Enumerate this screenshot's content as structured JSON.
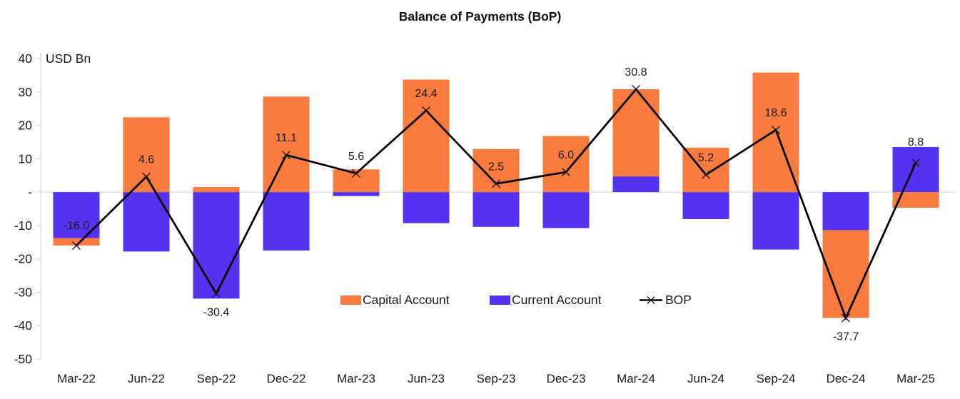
{
  "chart_data": {
    "type": "bar",
    "stacked": true,
    "line_overlay": true,
    "title": "Balance of Payments (BoP)",
    "unit_label": "USD Bn",
    "categories": [
      "Mar-22",
      "Jun-22",
      "Sep-22",
      "Dec-22",
      "Mar-23",
      "Jun-23",
      "Sep-23",
      "Dec-23",
      "Mar-24",
      "Jun-24",
      "Sep-24",
      "Dec-24",
      "Mar-25"
    ],
    "series": [
      {
        "name": "Capital Account",
        "color": "#FA7B3E",
        "values": [
          -2.2,
          22.4,
          1.5,
          28.6,
          6.8,
          33.7,
          12.9,
          16.8,
          26.1,
          13.3,
          35.8,
          -26.3,
          -4.7
        ]
      },
      {
        "name": "Current Account",
        "color": "#5632F0",
        "values": [
          -13.8,
          -17.8,
          -31.9,
          -17.5,
          -1.2,
          -9.3,
          -10.4,
          -10.8,
          4.7,
          -8.1,
          -17.2,
          -11.4,
          13.5
        ]
      }
    ],
    "stack_order": [
      "Current Account",
      "Capital Account"
    ],
    "line_series": {
      "name": "BOP",
      "color": "#000000",
      "marker": "x",
      "values": [
        -16.0,
        4.6,
        -30.4,
        11.1,
        5.6,
        24.4,
        2.5,
        6.0,
        30.8,
        5.2,
        18.6,
        -37.7,
        8.8
      ],
      "labels": [
        "-16.0",
        "4.6",
        "-30.4",
        "11.1",
        "5.6",
        "24.4",
        "2.5",
        "6.0",
        "30.8",
        "5.2",
        "18.6",
        "-37.7",
        "8.8"
      ],
      "label_dy": [
        -29,
        -25,
        25,
        -25,
        -25,
        -25,
        -25,
        -25,
        -25,
        -25,
        -25,
        25,
        -30
      ]
    },
    "ylim": [
      -50,
      40
    ],
    "y_tick_step": 10,
    "y_ticks": [
      {
        "value": 40,
        "label": "40"
      },
      {
        "value": 30,
        "label": "30"
      },
      {
        "value": 20,
        "label": "20"
      },
      {
        "value": 10,
        "label": "10"
      },
      {
        "value": 0,
        "label": "-"
      },
      {
        "value": -10,
        "label": "-10"
      },
      {
        "value": -20,
        "label": "-20"
      },
      {
        "value": -30,
        "label": "-30"
      },
      {
        "value": -40,
        "label": "-40"
      },
      {
        "value": -50,
        "label": "-50"
      }
    ],
    "grid": "zero-line-only",
    "axis_color": "#D9D9D9",
    "text_color": "#1a1a1a",
    "legend_position": "inside-bottom-center",
    "legend": [
      "Capital Account",
      "Current Account",
      "BOP"
    ]
  }
}
